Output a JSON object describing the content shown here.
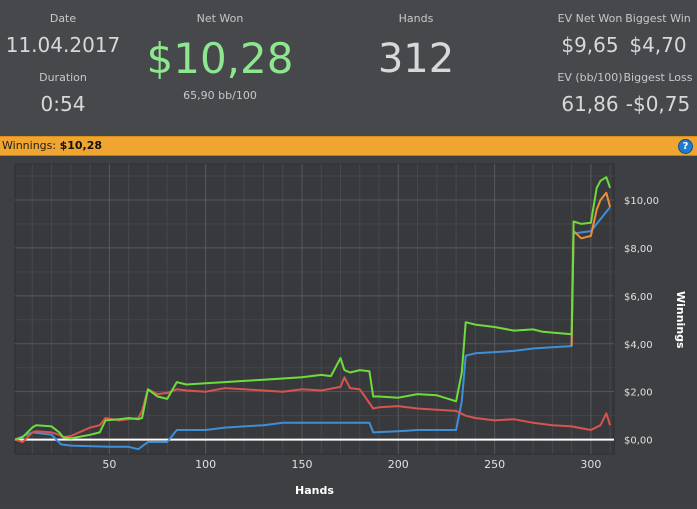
{
  "stats": {
    "date_label": "Date",
    "date_value": "11.04.2017",
    "duration_label": "Duration",
    "duration_value": "0:54",
    "net_won_label": "Net Won",
    "net_won_value": "$10,28",
    "net_won_sub": "65,90 bb/100",
    "hands_label": "Hands",
    "hands_value": "312",
    "ev_net_won_label": "EV Net Won",
    "ev_net_won_value": "$9,65",
    "biggest_win_label": "Biggest Win",
    "biggest_win_value": "$4,70",
    "ev_bb_label": "EV (bb/100)",
    "ev_bb_value": "61,86",
    "biggest_loss_label": "Biggest Loss",
    "biggest_loss_value": "-$0,75"
  },
  "bar": {
    "label": "Winnings:",
    "value": "$10,28",
    "help_icon": "?"
  },
  "colors": {
    "net_won": "#8ee68e",
    "green_line": "#6edc3a",
    "orange_line": "#e8913a",
    "red_line": "#d9534f",
    "blue_line": "#3f8fd8",
    "zero_line": "#ffffff"
  },
  "chart_data": {
    "type": "line",
    "xlabel": "Hands",
    "ylabel": "Winnings",
    "xlim": [
      1,
      312
    ],
    "ylim": [
      -0.6,
      11.5
    ],
    "x_ticks": [
      "50",
      "100",
      "150",
      "200",
      "250",
      "300"
    ],
    "x_tick_values": [
      50,
      100,
      150,
      200,
      250,
      300
    ],
    "y_ticks": [
      "$0,00",
      "$2,00",
      "$4,00",
      "$6,00",
      "$8,00",
      "$10,00"
    ],
    "y_tick_values": [
      0,
      2,
      4,
      6,
      8,
      10
    ],
    "grid": true,
    "series": [
      {
        "color": "#6edc3a",
        "x": [
          1,
          5,
          10,
          12,
          20,
          24,
          26,
          30,
          40,
          45,
          48,
          55,
          60,
          65,
          67,
          70,
          75,
          80,
          85,
          90,
          100,
          110,
          120,
          130,
          140,
          150,
          160,
          165,
          170,
          172,
          175,
          180,
          185,
          187,
          190,
          200,
          210,
          220,
          230,
          233,
          235,
          240,
          250,
          260,
          270,
          275,
          290,
          291,
          295,
          300,
          303,
          305,
          308,
          310
        ],
        "y": [
          0.0,
          0.1,
          0.5,
          0.6,
          0.55,
          0.3,
          0.1,
          0.05,
          0.2,
          0.3,
          0.8,
          0.85,
          0.9,
          0.85,
          0.9,
          2.1,
          1.8,
          1.7,
          2.4,
          2.3,
          2.35,
          2.4,
          2.45,
          2.5,
          2.55,
          2.6,
          2.7,
          2.65,
          3.4,
          2.9,
          2.8,
          2.9,
          2.85,
          1.8,
          1.8,
          1.75,
          1.9,
          1.85,
          1.6,
          2.8,
          4.9,
          4.8,
          4.7,
          4.55,
          4.6,
          4.5,
          4.4,
          9.1,
          9.0,
          9.05,
          10.5,
          10.8,
          10.95,
          10.5
        ]
      },
      {
        "color": "#e8913a",
        "x": [
          290,
          291,
          295,
          300,
          303,
          305,
          308,
          310
        ],
        "y": [
          3.9,
          8.7,
          8.4,
          8.5,
          9.6,
          10.0,
          10.3,
          9.7
        ]
      },
      {
        "color": "#d9534f",
        "x": [
          1,
          5,
          10,
          12,
          20,
          24,
          26,
          30,
          40,
          45,
          48,
          55,
          60,
          65,
          67,
          70,
          75,
          80,
          85,
          90,
          100,
          110,
          120,
          130,
          140,
          150,
          160,
          170,
          172,
          175,
          180,
          187,
          190,
          200,
          210,
          220,
          230,
          235,
          240,
          250,
          260,
          270,
          280,
          290,
          300,
          305,
          308,
          310
        ],
        "y": [
          0.0,
          -0.1,
          0.3,
          0.35,
          0.3,
          0.2,
          0.1,
          0.15,
          0.5,
          0.6,
          0.9,
          0.8,
          0.85,
          0.9,
          1.2,
          2.1,
          1.9,
          1.95,
          2.1,
          2.05,
          2.0,
          2.15,
          2.1,
          2.05,
          2.0,
          2.1,
          2.05,
          2.2,
          2.6,
          2.15,
          2.1,
          1.3,
          1.35,
          1.4,
          1.3,
          1.25,
          1.2,
          1.0,
          0.9,
          0.8,
          0.85,
          0.7,
          0.6,
          0.55,
          0.4,
          0.6,
          1.1,
          0.6
        ]
      },
      {
        "color": "#3f8fd8",
        "x": [
          1,
          10,
          20,
          25,
          30,
          50,
          60,
          65,
          70,
          80,
          82,
          85,
          90,
          100,
          110,
          120,
          130,
          140,
          150,
          160,
          170,
          180,
          185,
          187,
          200,
          210,
          220,
          230,
          233,
          235,
          240,
          250,
          260,
          270,
          280,
          290,
          291,
          300,
          305,
          310
        ],
        "y": [
          0.0,
          0.3,
          0.2,
          -0.2,
          -0.25,
          -0.3,
          -0.3,
          -0.4,
          -0.1,
          -0.1,
          0.1,
          0.4,
          0.4,
          0.4,
          0.5,
          0.55,
          0.6,
          0.7,
          0.7,
          0.7,
          0.7,
          0.7,
          0.7,
          0.3,
          0.35,
          0.4,
          0.4,
          0.4,
          1.6,
          3.5,
          3.6,
          3.65,
          3.7,
          3.8,
          3.85,
          3.9,
          8.6,
          8.7,
          9.2,
          9.7
        ]
      }
    ]
  }
}
